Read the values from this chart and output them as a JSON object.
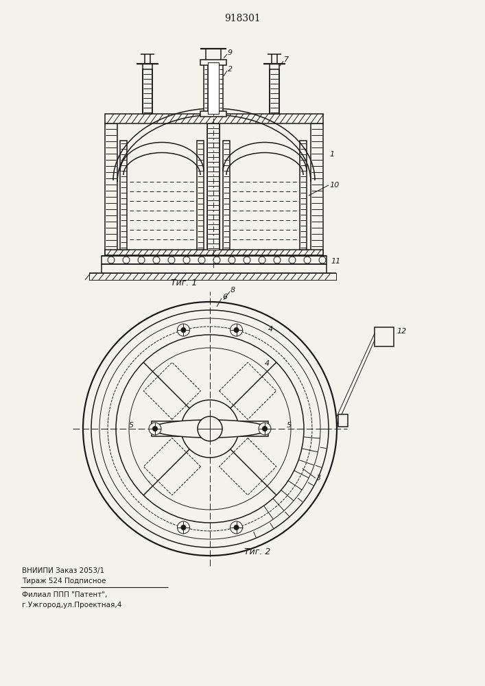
{
  "patent_number": "918301",
  "fig1_caption": "Τиг. 1",
  "fig2_caption": "Τиг. 2",
  "footer_line1": "ВНИИПИ Заказ 2053/1",
  "footer_line2": "Тираж 524 Подписное",
  "footer_line3": "Филиал ППП \"Патент\",",
  "footer_line4": "г.Ужгород,ул.Проектная,4",
  "bg_color": "#f5f2ee",
  "line_color": "#1a1a1a"
}
